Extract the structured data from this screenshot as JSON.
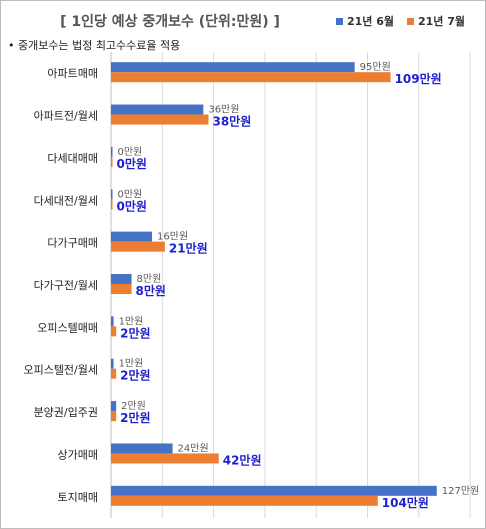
{
  "title": "[ 1인당 예상 중개보수 (단위:만원) ]",
  "note": "• 중개보수는 법정 최고수수료율 적용",
  "colors": {
    "s1": "#4472c4",
    "s2": "#ed7d31",
    "label2": "#1f1fd0",
    "label1": "#595959",
    "grid": "#d9d9d9"
  },
  "chart_data": {
    "type": "bar",
    "orientation": "horizontal",
    "categories": [
      "아파트매매",
      "아파트전/월세",
      "다세대매매",
      "다세대전/월세",
      "다가구매매",
      "다가구전/월세",
      "오피스텔매매",
      "오피스텔전/월세",
      "분양권/입주권",
      "상가매매",
      "토지매매"
    ],
    "series": [
      {
        "name": "21년 6월",
        "values": [
          95,
          36,
          0,
          0,
          16,
          8,
          1,
          1,
          2,
          24,
          127
        ],
        "labels": [
          "95만원",
          "36만원",
          "0만원",
          "0만원",
          "16만원",
          "8만원",
          "1만원",
          "1만원",
          "2만원",
          "24만원",
          "127만원"
        ]
      },
      {
        "name": "21년 7월",
        "values": [
          109,
          38,
          0,
          0,
          21,
          8,
          2,
          2,
          2,
          42,
          104
        ],
        "labels": [
          "109만원",
          "38만원",
          "0만원",
          "0만원",
          "21만원",
          "8만원",
          "2만원",
          "2만원",
          "2만원",
          "42만원",
          "104만원"
        ]
      }
    ],
    "xlim": [
      0,
      140
    ],
    "grid": true,
    "legend_position": "top-right"
  }
}
